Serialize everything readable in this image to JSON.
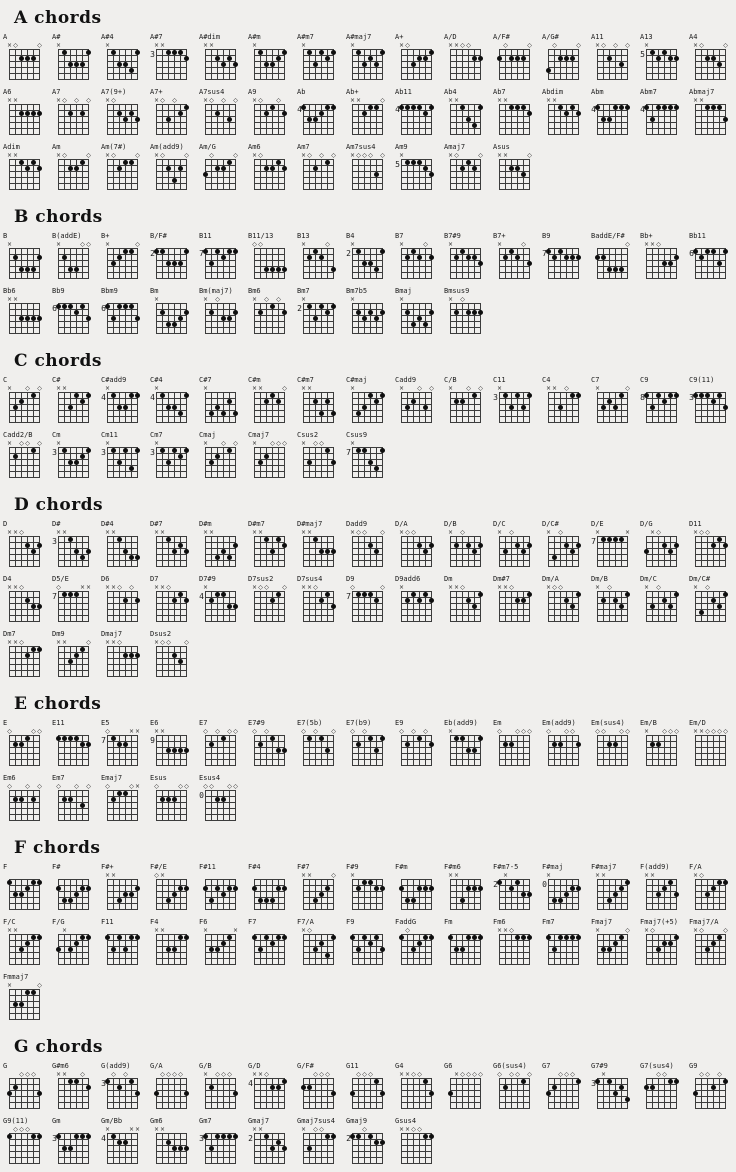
{
  "page": {
    "background": "#f0efed",
    "ink": "#1c1c1c",
    "grid_line": "#3c3c3c",
    "dot": "#0e0e0e"
  },
  "legend": {
    "muted_symbol": "×",
    "open_symbol": "◇"
  },
  "sections": [
    {
      "heading": "A chords",
      "chords": [
        {
          "name": "A",
          "frets": "x02220",
          "base": ""
        },
        {
          "name": "A#",
          "frets": "x13331",
          "base": ""
        },
        {
          "name": "A#4",
          "frets": "x13341",
          "base": ""
        },
        {
          "name": "A#7",
          "frets": "xx1112",
          "base": "3"
        },
        {
          "name": "A#dim",
          "frets": "xx2323",
          "base": ""
        },
        {
          "name": "A#m",
          "frets": "x13321",
          "base": ""
        },
        {
          "name": "A#m7",
          "frets": "x13121",
          "base": ""
        },
        {
          "name": "A#maj7",
          "frets": "x13231",
          "base": ""
        },
        {
          "name": "A+",
          "frets": "x03221",
          "base": ""
        },
        {
          "name": "A/D",
          "frets": "xx0022",
          "base": ""
        },
        {
          "name": "A/F#",
          "frets": "202220",
          "base": ""
        },
        {
          "name": "A/G#",
          "frets": "402220",
          "base": ""
        },
        {
          "name": "A11",
          "frets": "x02030",
          "base": ""
        },
        {
          "name": "A13",
          "frets": "x12122",
          "base": "5"
        },
        {
          "name": "A4",
          "frets": "x02230",
          "base": ""
        },
        {
          "name": "A6",
          "frets": "xx2222",
          "base": ""
        },
        {
          "name": "A7",
          "frets": "x02020",
          "base": ""
        },
        {
          "name": "A7(9+)",
          "frets": "x02323",
          "base": ""
        },
        {
          "name": "A7+",
          "frets": "x03021",
          "base": ""
        },
        {
          "name": "A7sus4",
          "frets": "x02030",
          "base": ""
        },
        {
          "name": "A9",
          "frets": "x02102",
          "base": ""
        },
        {
          "name": "Ab",
          "frets": "133211",
          "base": "4"
        },
        {
          "name": "Ab+",
          "frets": "xx2110",
          "base": ""
        },
        {
          "name": "Ab11",
          "frets": "111121",
          "base": "4"
        },
        {
          "name": "Ab4",
          "frets": "xx1341",
          "base": ""
        },
        {
          "name": "Ab7",
          "frets": "xx1112",
          "base": ""
        },
        {
          "name": "Abdim",
          "frets": "xx1212",
          "base": ""
        },
        {
          "name": "Abm",
          "frets": "133111",
          "base": "4"
        },
        {
          "name": "Abm7",
          "frets": "131111",
          "base": "4"
        },
        {
          "name": "Abmaj7",
          "frets": "xx1113",
          "base": ""
        },
        {
          "name": "Adim",
          "frets": "xx1212",
          "base": ""
        },
        {
          "name": "Am",
          "frets": "x02210",
          "base": ""
        },
        {
          "name": "Am(7#)",
          "frets": "x02110",
          "base": ""
        },
        {
          "name": "Am(add9)",
          "frets": "x02420",
          "base": ""
        },
        {
          "name": "Am/G",
          "frets": "302210",
          "base": ""
        },
        {
          "name": "Am6",
          "frets": "x02212",
          "base": ""
        },
        {
          "name": "Am7",
          "frets": "x02010",
          "base": ""
        },
        {
          "name": "Am7sus4",
          "frets": "x00030",
          "base": ""
        },
        {
          "name": "Am9",
          "frets": "x11123",
          "base": "5"
        },
        {
          "name": "Amaj7",
          "frets": "x02120",
          "base": ""
        },
        {
          "name": "Asus",
          "frets": "xx2230",
          "base": ""
        }
      ]
    },
    {
      "heading": "B chords",
      "chords": [
        {
          "name": "B",
          "frets": "x24442",
          "base": ""
        },
        {
          "name": "B(addE)",
          "frets": "x24400",
          "base": ""
        },
        {
          "name": "B+",
          "frets": "x32110",
          "base": ""
        },
        {
          "name": "B/F#",
          "frets": "113331",
          "base": "2"
        },
        {
          "name": "B11",
          "frets": "131211",
          "base": "7"
        },
        {
          "name": "B11/13",
          "frets": "004444",
          "base": ""
        },
        {
          "name": "B13",
          "frets": "x21204",
          "base": ""
        },
        {
          "name": "B4",
          "frets": "x13341",
          "base": "2"
        },
        {
          "name": "B7",
          "frets": "x21202",
          "base": ""
        },
        {
          "name": "B7#9",
          "frets": "x21223",
          "base": ""
        },
        {
          "name": "B7+",
          "frets": "x21203",
          "base": ""
        },
        {
          "name": "B9",
          "frets": "121222",
          "base": "7"
        },
        {
          "name": "BaddE/F#",
          "frets": "224440",
          "base": ""
        },
        {
          "name": "Bb+",
          "frets": "xx0332",
          "base": ""
        },
        {
          "name": "Bb11",
          "frets": "121131",
          "base": "6"
        },
        {
          "name": "Bb6",
          "frets": "xx3333",
          "base": ""
        },
        {
          "name": "Bb9",
          "frets": "111213",
          "base": "6"
        },
        {
          "name": "Bbm9",
          "frets": "131113",
          "base": "6"
        },
        {
          "name": "Bm",
          "frets": "x24432",
          "base": ""
        },
        {
          "name": "Bm(maj7)",
          "frets": "x20332",
          "base": ""
        },
        {
          "name": "Bm6",
          "frets": "x20102",
          "base": ""
        },
        {
          "name": "Bm7",
          "frets": "x13121",
          "base": "2"
        },
        {
          "name": "Bm7b5",
          "frets": "x23232",
          "base": ""
        },
        {
          "name": "Bmaj",
          "frets": "x24342",
          "base": ""
        },
        {
          "name": "Bmsus9",
          "frets": "x20222",
          "base": ""
        }
      ]
    },
    {
      "heading": "C chords",
      "chords": [
        {
          "name": "C",
          "frets": "x32010",
          "base": ""
        },
        {
          "name": "C#",
          "frets": "xx3121",
          "base": ""
        },
        {
          "name": "C#add9",
          "frets": "x13311",
          "base": "4"
        },
        {
          "name": "C#4",
          "frets": "x13341",
          "base": "4"
        },
        {
          "name": "C#7",
          "frets": "x43424",
          "base": ""
        },
        {
          "name": "C#m",
          "frets": "xx2120",
          "base": ""
        },
        {
          "name": "C#m7",
          "frets": "xx2424",
          "base": ""
        },
        {
          "name": "C#maj",
          "frets": "x43121",
          "base": ""
        },
        {
          "name": "Cadd9",
          "frets": "x32030",
          "base": ""
        },
        {
          "name": "C/B",
          "frets": "x22010",
          "base": ""
        },
        {
          "name": "C11",
          "frets": "x13131",
          "base": "3"
        },
        {
          "name": "C4",
          "frets": "xx3011",
          "base": ""
        },
        {
          "name": "C7",
          "frets": "x32310",
          "base": ""
        },
        {
          "name": "C9",
          "frets": "131211",
          "base": "8"
        },
        {
          "name": "C9(11)",
          "frets": "111213",
          "base": "3"
        },
        {
          "name": "Cadd2/B",
          "frets": "x20010",
          "base": ""
        },
        {
          "name": "Cm",
          "frets": "x13321",
          "base": "3"
        },
        {
          "name": "Cm11",
          "frets": "x13141",
          "base": "3"
        },
        {
          "name": "Cm7",
          "frets": "x13121",
          "base": "3"
        },
        {
          "name": "Cmaj",
          "frets": "x32010",
          "base": ""
        },
        {
          "name": "Cmaj7",
          "frets": "x32000",
          "base": ""
        },
        {
          "name": "Csus2",
          "frets": "x30013",
          "base": ""
        },
        {
          "name": "Csus9",
          "frets": "x11341",
          "base": "7"
        }
      ]
    },
    {
      "heading": "D chords",
      "chords": [
        {
          "name": "D",
          "frets": "xx0232",
          "base": ""
        },
        {
          "name": "D#",
          "frets": "xx1343",
          "base": "3"
        },
        {
          "name": "D#4",
          "frets": "xx1344",
          "base": ""
        },
        {
          "name": "D#7",
          "frets": "xx1323",
          "base": ""
        },
        {
          "name": "D#m",
          "frets": "xx4342",
          "base": ""
        },
        {
          "name": "D#m7",
          "frets": "xx1312",
          "base": ""
        },
        {
          "name": "D#maj7",
          "frets": "xx1333",
          "base": ""
        },
        {
          "name": "Dadd9",
          "frets": "x00230",
          "base": ""
        },
        {
          "name": "D/A",
          "frets": "x00232",
          "base": ""
        },
        {
          "name": "D/B",
          "frets": "x20232",
          "base": ""
        },
        {
          "name": "D/C",
          "frets": "x30232",
          "base": ""
        },
        {
          "name": "D/C#",
          "frets": "x40232",
          "base": ""
        },
        {
          "name": "D/E",
          "frets": "x1111x",
          "base": "7"
        },
        {
          "name": "D/G",
          "frets": "3x0232",
          "base": ""
        },
        {
          "name": "D11",
          "frets": "x00212",
          "base": ""
        },
        {
          "name": "D4",
          "frets": "xx0233",
          "base": ""
        },
        {
          "name": "D5/E",
          "frets": "0111xx",
          "base": "7"
        },
        {
          "name": "D6",
          "frets": "xx0202",
          "base": ""
        },
        {
          "name": "D7",
          "frets": "xx0212",
          "base": ""
        },
        {
          "name": "D7#9",
          "frets": "x21133",
          "base": "4"
        },
        {
          "name": "D7sus2",
          "frets": "x00210",
          "base": ""
        },
        {
          "name": "D7sus4",
          "frets": "xx0213",
          "base": ""
        },
        {
          "name": "D9",
          "frets": "011120",
          "base": "7"
        },
        {
          "name": "D9add6",
          "frets": "x21212",
          "base": ""
        },
        {
          "name": "Dm",
          "frets": "xx0231",
          "base": ""
        },
        {
          "name": "Dm#7",
          "frets": "xx0221",
          "base": ""
        },
        {
          "name": "Dm/A",
          "frets": "x00231",
          "base": ""
        },
        {
          "name": "Dm/B",
          "frets": "x20231",
          "base": ""
        },
        {
          "name": "Dm/C",
          "frets": "x30231",
          "base": ""
        },
        {
          "name": "Dm/C#",
          "frets": "x40231",
          "base": ""
        },
        {
          "name": "Dm7",
          "frets": "xx0211",
          "base": ""
        },
        {
          "name": "Dm9",
          "frets": "xx3210",
          "base": ""
        },
        {
          "name": "Dmaj7",
          "frets": "xx0222",
          "base": ""
        },
        {
          "name": "Dsus2",
          "frets": "x00230",
          "base": ""
        }
      ]
    },
    {
      "heading": "E chords",
      "chords": [
        {
          "name": "E",
          "frets": "022100",
          "base": ""
        },
        {
          "name": "E11",
          "frets": "111122",
          "base": ""
        },
        {
          "name": "E5",
          "frets": "0122xx",
          "base": "7"
        },
        {
          "name": "E6",
          "frets": "xx3333",
          "base": "9"
        },
        {
          "name": "E7",
          "frets": "020100",
          "base": ""
        },
        {
          "name": "E7#9",
          "frets": "020133",
          "base": ""
        },
        {
          "name": "E7(5b)",
          "frets": "010130",
          "base": ""
        },
        {
          "name": "E7(b9)",
          "frets": "020131",
          "base": ""
        },
        {
          "name": "E9",
          "frets": "020102",
          "base": ""
        },
        {
          "name": "Eb(add9)",
          "frets": "x11331",
          "base": ""
        },
        {
          "name": "Em",
          "frets": "022000",
          "base": ""
        },
        {
          "name": "Em(add9)",
          "frets": "022002",
          "base": ""
        },
        {
          "name": "Em(sus4)",
          "frets": "002200",
          "base": ""
        },
        {
          "name": "Em/B",
          "frets": "x22000",
          "base": ""
        },
        {
          "name": "Em/D",
          "frets": "xx0000",
          "base": ""
        },
        {
          "name": "Em6",
          "frets": "022020",
          "base": ""
        },
        {
          "name": "Em7",
          "frets": "022030",
          "base": ""
        },
        {
          "name": "Emaj7",
          "frets": "02110x",
          "base": ""
        },
        {
          "name": "Esus",
          "frets": "022200",
          "base": ""
        },
        {
          "name": "Esus4",
          "frets": "002200",
          "base": "0"
        }
      ]
    },
    {
      "heading": "F chords",
      "chords": [
        {
          "name": "F",
          "frets": "133211",
          "base": ""
        },
        {
          "name": "F#",
          "frets": "244322",
          "base": ""
        },
        {
          "name": "F#+",
          "frets": "xx4332",
          "base": ""
        },
        {
          "name": "F#/E",
          "frets": "0x4322",
          "base": ""
        },
        {
          "name": "F#11",
          "frets": "242322",
          "base": ""
        },
        {
          "name": "F#4",
          "frets": "244422",
          "base": ""
        },
        {
          "name": "F#7",
          "frets": "xx4320",
          "base": ""
        },
        {
          "name": "F#9",
          "frets": "x21122",
          "base": ""
        },
        {
          "name": "F#m",
          "frets": "244222",
          "base": ""
        },
        {
          "name": "F#m6",
          "frets": "xx4222",
          "base": ""
        },
        {
          "name": "F#m7-5",
          "frets": "1x2133",
          "base": "2"
        },
        {
          "name": "F#maj",
          "frets": "x44322",
          "base": "0"
        },
        {
          "name": "F#maj7",
          "frets": "xx4321",
          "base": ""
        },
        {
          "name": "F(add9)",
          "frets": "xx3213",
          "base": ""
        },
        {
          "name": "F/A",
          "frets": "x03211",
          "base": ""
        },
        {
          "name": "F/C",
          "frets": "xx3211",
          "base": ""
        },
        {
          "name": "F/G",
          "frets": "3x3211",
          "base": ""
        },
        {
          "name": "F11",
          "frets": "131311",
          "base": ""
        },
        {
          "name": "F4",
          "frets": "xx3311",
          "base": ""
        },
        {
          "name": "F6",
          "frets": "x3321x",
          "base": ""
        },
        {
          "name": "F7",
          "frets": "131211",
          "base": ""
        },
        {
          "name": "F7/A",
          "frets": "x03241",
          "base": ""
        },
        {
          "name": "F9",
          "frets": "131213",
          "base": ""
        },
        {
          "name": "FaddG",
          "frets": "103211",
          "base": ""
        },
        {
          "name": "Fm",
          "frets": "133111",
          "base": ""
        },
        {
          "name": "Fm6",
          "frets": "xx0111",
          "base": ""
        },
        {
          "name": "Fm7",
          "frets": "131111",
          "base": ""
        },
        {
          "name": "Fmaj7",
          "frets": "x33210",
          "base": ""
        },
        {
          "name": "Fmaj7(+5)",
          "frets": "x03221",
          "base": ""
        },
        {
          "name": "Fmaj7/A",
          "frets": "x03210",
          "base": ""
        },
        {
          "name": "Fmmaj7",
          "frets": "x33110",
          "base": ""
        }
      ]
    },
    {
      "heading": "G chords",
      "chords": [
        {
          "name": "G",
          "frets": "320003",
          "base": ""
        },
        {
          "name": "G#m6",
          "frets": "xx1102",
          "base": ""
        },
        {
          "name": "G(add9)",
          "frets": "102013",
          "base": "3"
        },
        {
          "name": "G/A",
          "frets": "300003",
          "base": ""
        },
        {
          "name": "G/B",
          "frets": "x20003",
          "base": ""
        },
        {
          "name": "G/D",
          "frets": "xx0221",
          "base": "4"
        },
        {
          "name": "G/F#",
          "frets": "220003",
          "base": ""
        },
        {
          "name": "G11",
          "frets": "300013",
          "base": ""
        },
        {
          "name": "G4",
          "frets": "xx0013",
          "base": ""
        },
        {
          "name": "G6",
          "frets": "3x0000",
          "base": ""
        },
        {
          "name": "G6(sus4)",
          "frets": "020010",
          "base": ""
        },
        {
          "name": "G7",
          "frets": "320001",
          "base": ""
        },
        {
          "name": "G7#9",
          "frets": "1x1324",
          "base": "3"
        },
        {
          "name": "G7(sus4)",
          "frets": "220011",
          "base": ""
        },
        {
          "name": "G9",
          "frets": "300201",
          "base": ""
        },
        {
          "name": "G9(11)",
          "frets": "100011",
          "base": ""
        },
        {
          "name": "Gm",
          "frets": "133111",
          "base": "3"
        },
        {
          "name": "Gm/Bb",
          "frets": "x122xx",
          "base": "4"
        },
        {
          "name": "Gm6",
          "frets": "xx2333",
          "base": ""
        },
        {
          "name": "Gm7",
          "frets": "131111",
          "base": "3"
        },
        {
          "name": "Gmaj7",
          "frets": "xx1323",
          "base": "2"
        },
        {
          "name": "Gmaj7sus4",
          "frets": "x30011",
          "base": ""
        },
        {
          "name": "Gmaj9",
          "frets": "110122",
          "base": "2"
        },
        {
          "name": "Gsus4",
          "frets": "xx0011",
          "base": ""
        }
      ]
    }
  ]
}
